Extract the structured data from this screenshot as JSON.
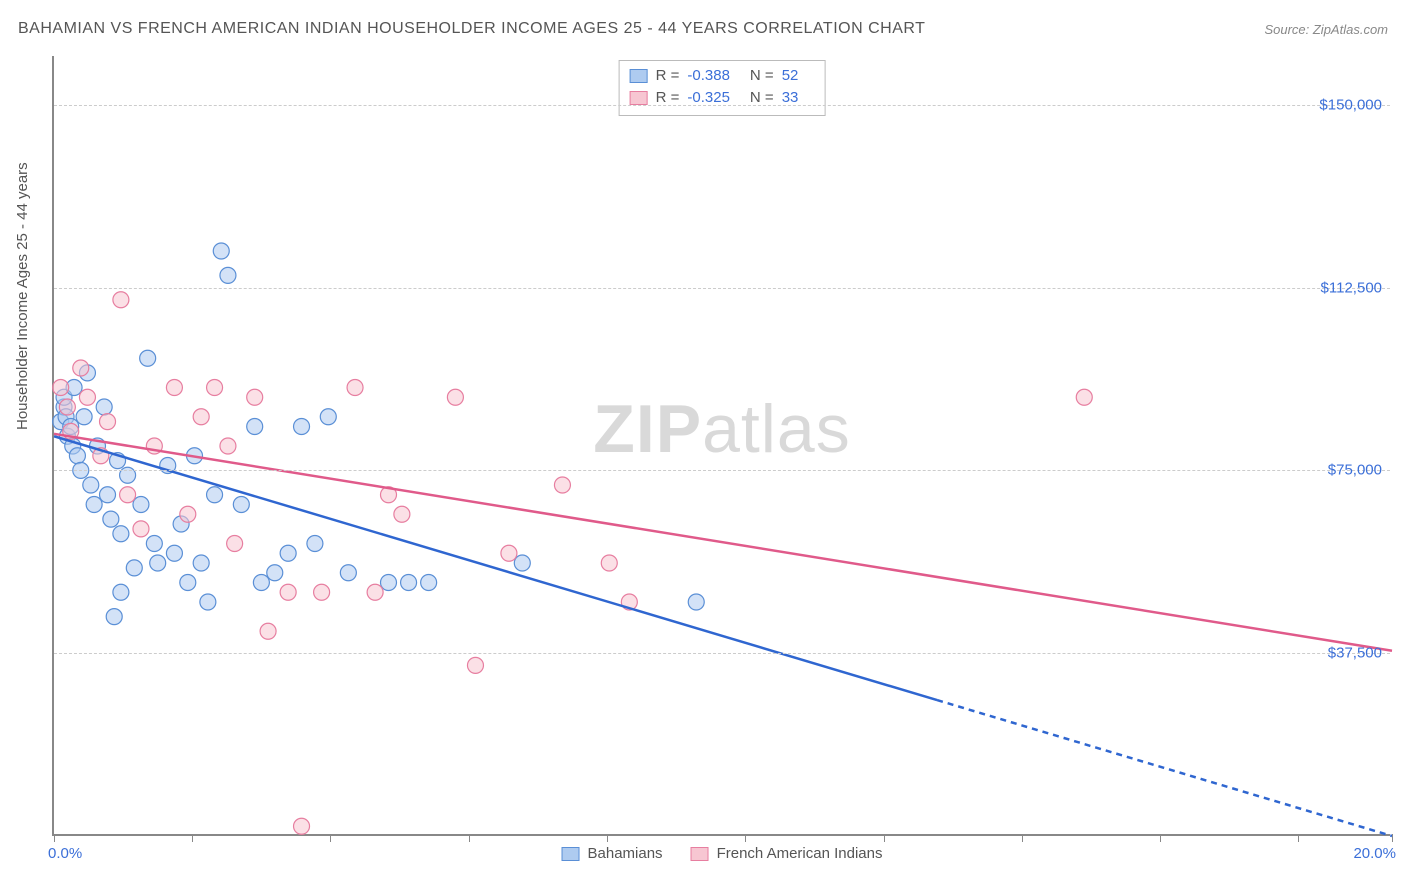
{
  "title": "BAHAMIAN VS FRENCH AMERICAN INDIAN HOUSEHOLDER INCOME AGES 25 - 44 YEARS CORRELATION CHART",
  "source": "Source: ZipAtlas.com",
  "y_axis_label": "Householder Income Ages 25 - 44 years",
  "watermark_prefix": "ZIP",
  "watermark_suffix": "atlas",
  "chart": {
    "type": "scatter",
    "x_range": [
      0,
      20
    ],
    "y_range": [
      0,
      160000
    ],
    "x_tick_positions": [
      0,
      2.07,
      4.13,
      6.2,
      8.27,
      10.33,
      12.4,
      14.47,
      16.53,
      18.6,
      20
    ],
    "x_axis_labels": [
      {
        "pos": 0,
        "text": "0.0%"
      },
      {
        "pos": 20,
        "text": "20.0%"
      }
    ],
    "y_gridlines": [
      37500,
      75000,
      112500,
      150000
    ],
    "y_tick_labels": [
      {
        "v": 37500,
        "text": "$37,500"
      },
      {
        "v": 75000,
        "text": "$75,000"
      },
      {
        "v": 112500,
        "text": "$112,500"
      },
      {
        "v": 150000,
        "text": "$150,000"
      }
    ],
    "background_color": "#ffffff",
    "grid_color": "#cccccc",
    "axis_color": "#888888",
    "marker_radius": 8,
    "marker_opacity": 0.55,
    "series": [
      {
        "name": "Bahamians",
        "fill": "#aecbf0",
        "stroke": "#5a8fd6",
        "stats": {
          "R": "-0.388",
          "N": "52"
        },
        "trend": {
          "x1": 0,
          "y1": 82000,
          "x2": 20,
          "y2": 0,
          "solid_until_x": 13.2,
          "color": "#2f66d0",
          "width": 2.5
        },
        "points": [
          [
            0.1,
            85000
          ],
          [
            0.15,
            88000
          ],
          [
            0.15,
            90000
          ],
          [
            0.18,
            86000
          ],
          [
            0.2,
            82000
          ],
          [
            0.25,
            84000
          ],
          [
            0.28,
            80000
          ],
          [
            0.3,
            92000
          ],
          [
            0.35,
            78000
          ],
          [
            0.4,
            75000
          ],
          [
            0.45,
            86000
          ],
          [
            0.5,
            95000
          ],
          [
            0.55,
            72000
          ],
          [
            0.6,
            68000
          ],
          [
            0.65,
            80000
          ],
          [
            0.75,
            88000
          ],
          [
            0.8,
            70000
          ],
          [
            0.9,
            45000
          ],
          [
            0.95,
            77000
          ],
          [
            1.0,
            62000
          ],
          [
            1.1,
            74000
          ],
          [
            1.2,
            55000
          ],
          [
            1.3,
            68000
          ],
          [
            1.4,
            98000
          ],
          [
            1.5,
            60000
          ],
          [
            1.55,
            56000
          ],
          [
            1.7,
            76000
          ],
          [
            1.8,
            58000
          ],
          [
            1.9,
            64000
          ],
          [
            2.0,
            52000
          ],
          [
            2.1,
            78000
          ],
          [
            2.2,
            56000
          ],
          [
            2.3,
            48000
          ],
          [
            2.4,
            70000
          ],
          [
            2.5,
            120000
          ],
          [
            2.6,
            115000
          ],
          [
            2.8,
            68000
          ],
          [
            3.0,
            84000
          ],
          [
            3.1,
            52000
          ],
          [
            3.3,
            54000
          ],
          [
            3.5,
            58000
          ],
          [
            3.7,
            84000
          ],
          [
            3.9,
            60000
          ],
          [
            4.1,
            86000
          ],
          [
            4.4,
            54000
          ],
          [
            5.0,
            52000
          ],
          [
            5.3,
            52000
          ],
          [
            5.6,
            52000
          ],
          [
            7.0,
            56000
          ],
          [
            9.6,
            48000
          ],
          [
            1.0,
            50000
          ],
          [
            0.85,
            65000
          ]
        ]
      },
      {
        "name": "French American Indians",
        "fill": "#f7c6d2",
        "stroke": "#e77ea0",
        "stats": {
          "R": "-0.325",
          "N": "33"
        },
        "trend": {
          "x1": 0,
          "y1": 82500,
          "x2": 20,
          "y2": 38000,
          "solid_until_x": 20,
          "color": "#e05a8a",
          "width": 2.5
        },
        "points": [
          [
            0.1,
            92000
          ],
          [
            0.2,
            88000
          ],
          [
            0.25,
            83000
          ],
          [
            0.4,
            96000
          ],
          [
            0.5,
            90000
          ],
          [
            0.7,
            78000
          ],
          [
            0.8,
            85000
          ],
          [
            1.0,
            110000
          ],
          [
            1.1,
            70000
          ],
          [
            1.3,
            63000
          ],
          [
            1.5,
            80000
          ],
          [
            1.8,
            92000
          ],
          [
            2.0,
            66000
          ],
          [
            2.2,
            86000
          ],
          [
            2.4,
            92000
          ],
          [
            2.6,
            80000
          ],
          [
            2.7,
            60000
          ],
          [
            3.0,
            90000
          ],
          [
            3.2,
            42000
          ],
          [
            3.5,
            50000
          ],
          [
            3.7,
            2000
          ],
          [
            4.0,
            50000
          ],
          [
            4.5,
            92000
          ],
          [
            4.8,
            50000
          ],
          [
            5.0,
            70000
          ],
          [
            5.2,
            66000
          ],
          [
            6.0,
            90000
          ],
          [
            6.3,
            35000
          ],
          [
            6.8,
            58000
          ],
          [
            7.6,
            72000
          ],
          [
            8.3,
            56000
          ],
          [
            8.6,
            48000
          ],
          [
            15.4,
            90000
          ]
        ]
      }
    ]
  },
  "legend": {
    "items": [
      {
        "label": "Bahamians",
        "fill": "#aecbf0",
        "stroke": "#5a8fd6"
      },
      {
        "label": "French American Indians",
        "fill": "#f7c6d2",
        "stroke": "#e77ea0"
      }
    ]
  },
  "colors": {
    "title": "#555555",
    "tick_label": "#3b6fd8",
    "source": "#888888"
  }
}
